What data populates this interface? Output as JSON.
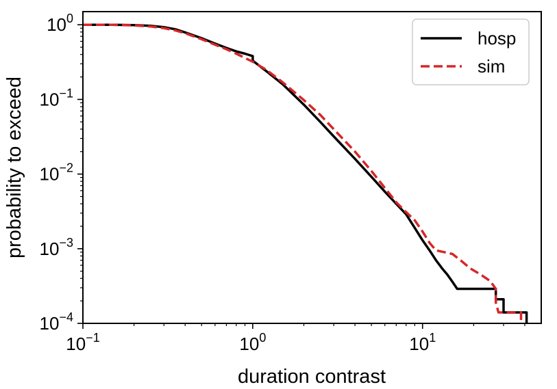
{
  "chart_data": {
    "type": "line",
    "xlabel": "duration contrast",
    "ylabel": "probability to exceed",
    "xscale": "log",
    "yscale": "log",
    "xlim": [
      0.1,
      50
    ],
    "ylim": [
      0.0001,
      1.5
    ],
    "grid": false,
    "legend_position": "top-right",
    "x_ticks": [
      {
        "value": 0.1,
        "base": "10",
        "exp": "−1"
      },
      {
        "value": 1,
        "base": "10",
        "exp": "0"
      },
      {
        "value": 10,
        "base": "10",
        "exp": "1"
      }
    ],
    "y_ticks": [
      {
        "value": 1,
        "base": "10",
        "exp": "0"
      },
      {
        "value": 0.1,
        "base": "10",
        "exp": "−1"
      },
      {
        "value": 0.01,
        "base": "10",
        "exp": "−2"
      },
      {
        "value": 0.001,
        "base": "10",
        "exp": "−3"
      },
      {
        "value": 0.0001,
        "base": "10",
        "exp": "−4"
      }
    ],
    "series": [
      {
        "name": "hosp",
        "color": "#000000",
        "style": "solid",
        "points": [
          [
            0.1,
            1.0
          ],
          [
            0.15,
            1.0
          ],
          [
            0.2,
            0.99
          ],
          [
            0.25,
            0.97
          ],
          [
            0.3,
            0.93
          ],
          [
            0.35,
            0.87
          ],
          [
            0.4,
            0.79
          ],
          [
            0.5,
            0.66
          ],
          [
            0.6,
            0.56
          ],
          [
            0.7,
            0.49
          ],
          [
            0.8,
            0.44
          ],
          [
            0.9,
            0.41
          ],
          [
            1.0,
            0.38
          ],
          [
            1.0,
            0.33
          ],
          [
            1.2,
            0.24
          ],
          [
            1.5,
            0.16
          ],
          [
            2.0,
            0.085
          ],
          [
            2.5,
            0.05
          ],
          [
            3.0,
            0.032
          ],
          [
            4.0,
            0.016
          ],
          [
            5.0,
            0.0092
          ],
          [
            6.0,
            0.0058
          ],
          [
            7.0,
            0.004
          ],
          [
            8.0,
            0.0029
          ],
          [
            9.0,
            0.0019
          ],
          [
            10.0,
            0.0013
          ],
          [
            11.0,
            0.00095
          ],
          [
            12.0,
            0.0007
          ],
          [
            13.0,
            0.00055
          ],
          [
            14.0,
            0.00045
          ],
          [
            15.0,
            0.00036
          ],
          [
            16.0,
            0.00029
          ],
          [
            27.0,
            0.00029
          ],
          [
            27.0,
            0.00021
          ],
          [
            30.0,
            0.00021
          ],
          [
            30.0,
            0.00014
          ],
          [
            41.0,
            0.00014
          ],
          [
            41.0,
            0.0001
          ]
        ]
      },
      {
        "name": "sim",
        "color": "#d62728",
        "style": "dashed",
        "points": [
          [
            0.1,
            1.0
          ],
          [
            0.15,
            1.0
          ],
          [
            0.2,
            0.98
          ],
          [
            0.25,
            0.95
          ],
          [
            0.3,
            0.9
          ],
          [
            0.35,
            0.84
          ],
          [
            0.4,
            0.77
          ],
          [
            0.5,
            0.64
          ],
          [
            0.6,
            0.54
          ],
          [
            0.7,
            0.47
          ],
          [
            0.8,
            0.41
          ],
          [
            0.9,
            0.36
          ],
          [
            1.0,
            0.32
          ],
          [
            1.2,
            0.25
          ],
          [
            1.5,
            0.17
          ],
          [
            2.0,
            0.098
          ],
          [
            2.5,
            0.062
          ],
          [
            3.0,
            0.04
          ],
          [
            4.0,
            0.02
          ],
          [
            5.0,
            0.011
          ],
          [
            6.0,
            0.0065
          ],
          [
            7.0,
            0.0042
          ],
          [
            8.0,
            0.0031
          ],
          [
            9.0,
            0.0024
          ],
          [
            10.0,
            0.0017
          ],
          [
            11.0,
            0.0012
          ],
          [
            12.0,
            0.00095
          ],
          [
            15.0,
            0.00085
          ],
          [
            17.0,
            0.00068
          ],
          [
            19.0,
            0.00055
          ],
          [
            22.0,
            0.00045
          ],
          [
            25.0,
            0.00037
          ],
          [
            27.0,
            0.00029
          ],
          [
            27.0,
            0.00019
          ],
          [
            28.0,
            0.00014
          ],
          [
            38.0,
            0.00014
          ],
          [
            38.0,
            0.0001
          ]
        ]
      }
    ]
  }
}
